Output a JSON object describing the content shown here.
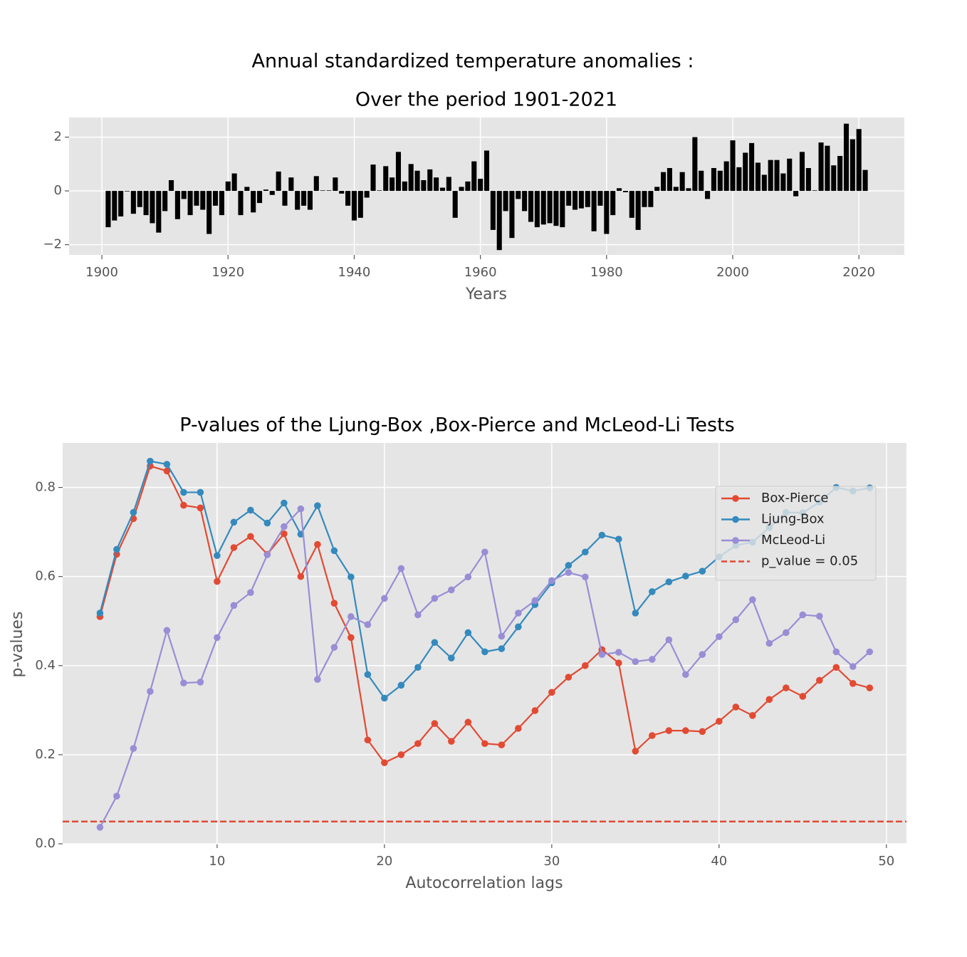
{
  "chart_data": [
    {
      "type": "bar",
      "title": "Annual standardized temperature anomalies :",
      "subtitle": "Over the period 1901-2021",
      "x_label": "Years",
      "color": "#000000",
      "x": [
        1901,
        1902,
        1903,
        1904,
        1905,
        1906,
        1907,
        1908,
        1909,
        1910,
        1911,
        1912,
        1913,
        1914,
        1915,
        1916,
        1917,
        1918,
        1919,
        1920,
        1921,
        1922,
        1923,
        1924,
        1925,
        1926,
        1927,
        1928,
        1929,
        1930,
        1931,
        1932,
        1933,
        1934,
        1935,
        1936,
        1937,
        1938,
        1939,
        1940,
        1941,
        1942,
        1943,
        1944,
        1945,
        1946,
        1947,
        1948,
        1949,
        1950,
        1951,
        1952,
        1953,
        1954,
        1955,
        1956,
        1957,
        1958,
        1959,
        1960,
        1961,
        1962,
        1963,
        1964,
        1965,
        1966,
        1967,
        1968,
        1969,
        1970,
        1971,
        1972,
        1973,
        1974,
        1975,
        1976,
        1977,
        1978,
        1979,
        1980,
        1981,
        1982,
        1983,
        1984,
        1985,
        1986,
        1987,
        1988,
        1989,
        1990,
        1991,
        1992,
        1993,
        1994,
        1995,
        1996,
        1997,
        1998,
        1999,
        2000,
        2001,
        2002,
        2003,
        2004,
        2005,
        2006,
        2007,
        2008,
        2009,
        2010,
        2011,
        2012,
        2013,
        2014,
        2015,
        2016,
        2017,
        2018,
        2019,
        2020,
        2021
      ],
      "values": [
        -1.35,
        -1.1,
        -0.95,
        -0.02,
        -0.85,
        -0.6,
        -0.9,
        -1.2,
        -1.55,
        -0.75,
        0.4,
        -1.05,
        -0.3,
        -0.9,
        -0.55,
        -0.7,
        -1.6,
        -0.55,
        -0.9,
        0.35,
        0.65,
        -0.9,
        0.15,
        -0.8,
        -0.45,
        0.05,
        -0.15,
        0.72,
        -0.55,
        0.5,
        -0.7,
        -0.55,
        -0.7,
        0.55,
        0.02,
        0.02,
        0.5,
        -0.1,
        -0.55,
        -1.1,
        -1.0,
        -0.25,
        0.98,
        0.02,
        0.92,
        0.5,
        1.45,
        0.35,
        1.0,
        0.75,
        0.4,
        0.8,
        0.5,
        0.12,
        0.52,
        -1.0,
        0.15,
        0.35,
        1.1,
        0.45,
        1.5,
        -1.45,
        -2.2,
        -0.75,
        -1.75,
        -0.3,
        -0.75,
        -1.15,
        -1.35,
        -1.25,
        -1.2,
        -1.3,
        -1.35,
        -0.55,
        -0.7,
        -0.65,
        -0.6,
        -1.5,
        -0.55,
        -1.6,
        -0.9,
        0.1,
        -0.05,
        -1.0,
        -1.45,
        -0.6,
        -0.6,
        0.15,
        0.7,
        0.85,
        0.15,
        0.7,
        0.1,
        2.0,
        0.75,
        -0.3,
        0.85,
        0.75,
        1.1,
        1.88,
        0.88,
        1.42,
        1.78,
        1.05,
        0.6,
        1.15,
        1.15,
        0.65,
        1.2,
        -0.2,
        1.45,
        0.85,
        0.02,
        1.8,
        1.68,
        0.95,
        1.3,
        2.5,
        1.92,
        2.3,
        0.78
      ],
      "xlim": [
        1894.8,
        2027.2
      ],
      "xticks": [
        1900,
        1920,
        1940,
        1960,
        1980,
        2000,
        2020
      ],
      "ylim": [
        -2.38,
        2.73
      ],
      "yticks": [
        {
          "value": -2,
          "label": "−2"
        },
        0,
        2
      ],
      "grid": true
    },
    {
      "type": "line",
      "title": "P-values of the Ljung-Box ,Box-Pierce and McLeod-Li Tests",
      "x_label": "Autocorrelation lags",
      "y_label": "p-values",
      "x": [
        3,
        4,
        5,
        6,
        7,
        8,
        9,
        10,
        11,
        12,
        13,
        14,
        15,
        16,
        17,
        18,
        19,
        20,
        21,
        22,
        23,
        24,
        25,
        26,
        27,
        28,
        29,
        30,
        31,
        32,
        33,
        34,
        35,
        36,
        37,
        38,
        39,
        40,
        41,
        42,
        43,
        44,
        45,
        46,
        47,
        48,
        49
      ],
      "series": [
        {
          "name": "Box-Pierce",
          "color": "#E24A33",
          "values": [
            0.51,
            0.65,
            0.73,
            0.848,
            0.837,
            0.76,
            0.754,
            0.589,
            0.665,
            0.69,
            0.65,
            0.696,
            0.6,
            0.672,
            0.54,
            0.463,
            0.233,
            0.182,
            0.2,
            0.225,
            0.27,
            0.23,
            0.273,
            0.225,
            0.222,
            0.259,
            0.299,
            0.34,
            0.374,
            0.4,
            0.436,
            0.406,
            0.208,
            0.243,
            0.254,
            0.254,
            0.252,
            0.275,
            0.307,
            0.288,
            0.324,
            0.35,
            0.331,
            0.367,
            0.396,
            0.36,
            0.35
          ]
        },
        {
          "name": "Ljung-Box",
          "color": "#348ABD",
          "values": [
            0.518,
            0.661,
            0.744,
            0.859,
            0.852,
            0.789,
            0.789,
            0.647,
            0.722,
            0.749,
            0.72,
            0.765,
            0.695,
            0.759,
            0.658,
            0.599,
            0.38,
            0.327,
            0.356,
            0.396,
            0.452,
            0.417,
            0.474,
            0.431,
            0.438,
            0.487,
            0.537,
            0.586,
            0.625,
            0.655,
            0.693,
            0.684,
            0.518,
            0.566,
            0.588,
            0.601,
            0.612,
            0.644,
            0.67,
            0.677,
            0.71,
            0.744,
            0.743,
            0.767,
            0.8,
            0.792,
            0.799
          ]
        },
        {
          "name": "McLeod-Li",
          "color": "#988ED5",
          "values": [
            0.037,
            0.107,
            0.214,
            0.342,
            0.479,
            0.361,
            0.363,
            0.463,
            0.535,
            0.564,
            0.649,
            0.712,
            0.752,
            0.369,
            0.441,
            0.51,
            0.492,
            0.551,
            0.618,
            0.514,
            0.551,
            0.57,
            0.599,
            0.655,
            0.466,
            0.518,
            0.546,
            0.591,
            0.609,
            0.599,
            0.425,
            0.43,
            0.409,
            0.414,
            0.458,
            0.38,
            0.425,
            0.465,
            0.503,
            0.548,
            0.45,
            0.474,
            0.514,
            0.511,
            0.431,
            0.398,
            0.431
          ]
        }
      ],
      "hlines": [
        {
          "name": "p_value = 0.05",
          "value": 0.05,
          "color": "#E24A33",
          "style": "dashed"
        }
      ],
      "xlim": [
        0.77,
        51.2
      ],
      "xticks": [
        10,
        20,
        30,
        40,
        50
      ],
      "ylim": [
        0,
        0.9
      ],
      "yticks": [
        {
          "value": 0,
          "label": "0.0"
        },
        0.2,
        0.4,
        0.6,
        0.8
      ],
      "grid": true,
      "legend": "upper right"
    }
  ]
}
